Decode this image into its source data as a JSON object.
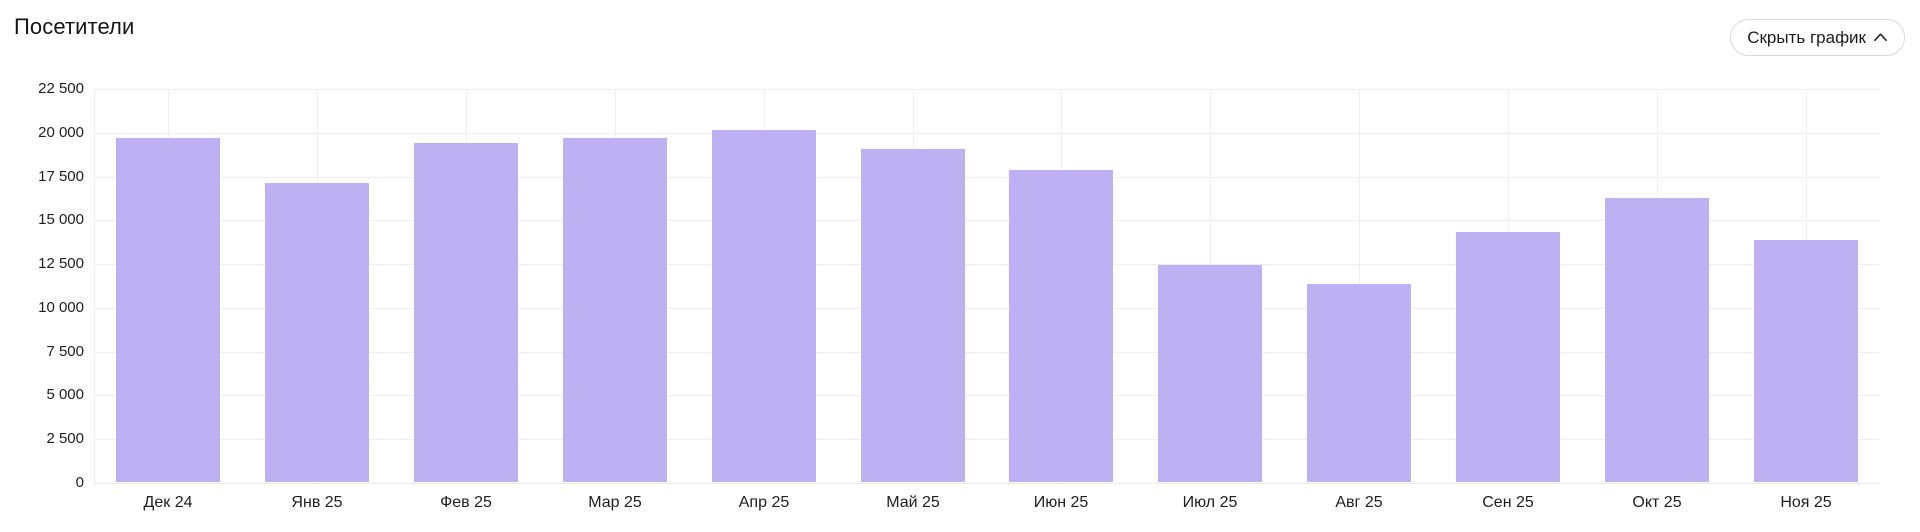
{
  "header": {
    "title": "Посетители",
    "toggle_button": {
      "label": "Скрыть график",
      "icon": "chevron-up-icon"
    }
  },
  "colors": {
    "background": "#ffffff",
    "bar": "#bfb0f3",
    "grid": "#eeeef2",
    "grid_zero": "#e7e7ec",
    "axis_text": "#21201f",
    "title_text": "#161616",
    "button_border": "#d8d8dc",
    "button_text": "#1c1c1c"
  },
  "chart_data": {
    "type": "bar",
    "title": "Посетители",
    "categories": [
      "Дек 24",
      "Янв 25",
      "Фев 25",
      "Мар 25",
      "Апр 25",
      "Май 25",
      "Июн 25",
      "Июл 25",
      "Авг 25",
      "Сен 25",
      "Окт 25",
      "Ноя 25"
    ],
    "values": [
      19650,
      17050,
      19350,
      19650,
      20100,
      19000,
      17800,
      12400,
      11300,
      14300,
      16200,
      13800
    ],
    "xlabel": "",
    "ylabel": "",
    "ylim": [
      0,
      22500
    ],
    "ytick_step": 2500,
    "ytick_labels": [
      "0",
      "2 500",
      "5 000",
      "7 500",
      "10 000",
      "12 500",
      "15 000",
      "17 500",
      "20 000",
      "22 500"
    ],
    "grid": "horizontal lines at every y tick, vertical line at each bar center and plot left edge",
    "legend_position": "none",
    "bar_color": "#bfb0f3"
  }
}
